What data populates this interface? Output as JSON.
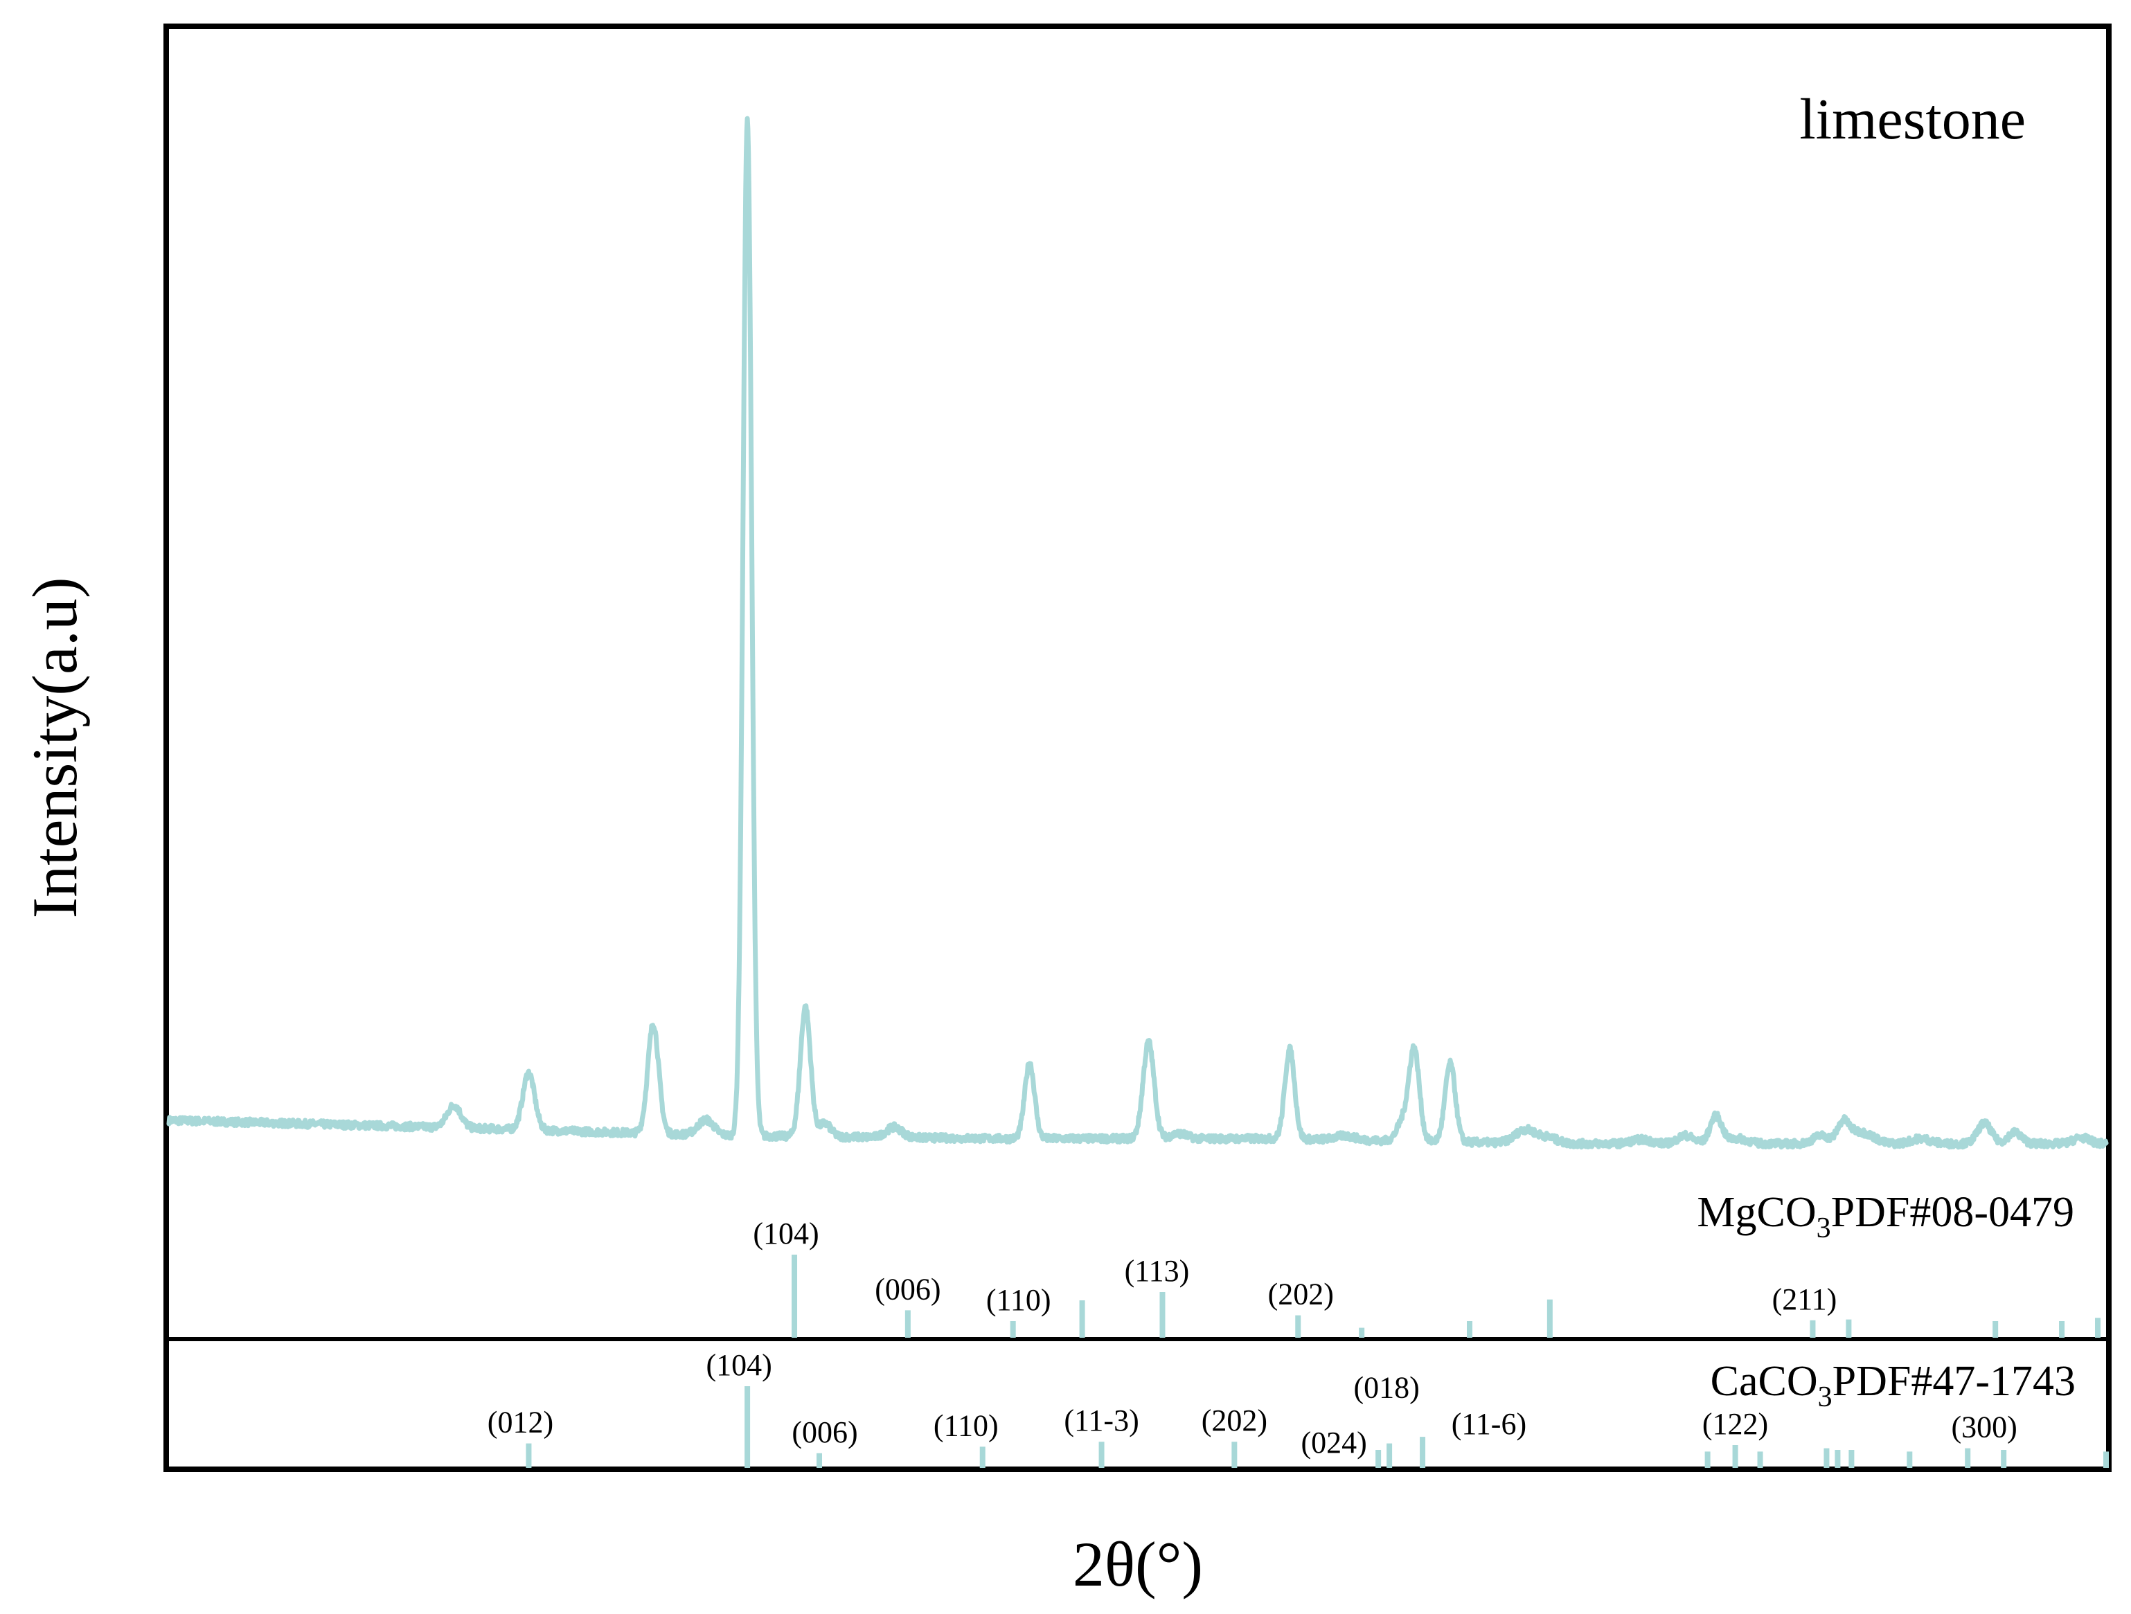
{
  "chart_data": {
    "type": "line",
    "title": "",
    "xlabel": "2θ(°)",
    "ylabel": "Intensity(a.u)",
    "xlim": [
      10,
      80
    ],
    "ylim": [
      0,
      100
    ],
    "grid": false,
    "legend": "none",
    "colors": {
      "pattern": "#a8d8d8",
      "axes": "#000000"
    },
    "series": [
      {
        "name": "limestone",
        "peaks": [
          {
            "x": 20.3,
            "y": 2.2,
            "w": 0.35
          },
          {
            "x": 23.0,
            "y": 5.6,
            "w": 0.3
          },
          {
            "x": 27.5,
            "y": 10.8,
            "w": 0.28
          },
          {
            "x": 29.4,
            "y": 1.5,
            "w": 0.4
          },
          {
            "x": 30.9,
            "y": 99.8,
            "w": 0.22
          },
          {
            "x": 33.0,
            "y": 12.7,
            "w": 0.26
          },
          {
            "x": 33.7,
            "y": 1.3,
            "w": 0.3
          },
          {
            "x": 36.2,
            "y": 1.0,
            "w": 0.4
          },
          {
            "x": 41.1,
            "y": 7.4,
            "w": 0.25
          },
          {
            "x": 45.4,
            "y": 9.5,
            "w": 0.28
          },
          {
            "x": 46.5,
            "y": 0.5,
            "w": 0.4
          },
          {
            "x": 50.5,
            "y": 8.8,
            "w": 0.25
          },
          {
            "x": 52.5,
            "y": 0.4,
            "w": 0.5
          },
          {
            "x": 54.6,
            "y": 2.0,
            "w": 0.3
          },
          {
            "x": 55.0,
            "y": 8.9,
            "w": 0.26
          },
          {
            "x": 56.3,
            "y": 7.7,
            "w": 0.26
          },
          {
            "x": 59.0,
            "y": 1.3,
            "w": 0.5
          },
          {
            "x": 59.8,
            "y": 0.6,
            "w": 0.5
          },
          {
            "x": 63.2,
            "y": 0.4,
            "w": 0.5
          },
          {
            "x": 64.8,
            "y": 0.8,
            "w": 0.4
          },
          {
            "x": 65.9,
            "y": 2.7,
            "w": 0.3
          },
          {
            "x": 66.7,
            "y": 0.5,
            "w": 0.5
          },
          {
            "x": 69.7,
            "y": 0.8,
            "w": 0.4
          },
          {
            "x": 70.5,
            "y": 2.1,
            "w": 0.3
          },
          {
            "x": 71.0,
            "y": 1.0,
            "w": 0.4
          },
          {
            "x": 71.5,
            "y": 0.6,
            "w": 0.4
          },
          {
            "x": 73.3,
            "y": 0.5,
            "w": 0.5
          },
          {
            "x": 75.6,
            "y": 2.0,
            "w": 0.35
          },
          {
            "x": 76.7,
            "y": 1.1,
            "w": 0.35
          },
          {
            "x": 79.1,
            "y": 0.6,
            "w": 0.4
          }
        ],
        "baseline": [
          {
            "x": 10,
            "y": 1.5
          },
          {
            "x": 20,
            "y": 0.8
          },
          {
            "x": 30,
            "y": 0.0
          },
          {
            "x": 40,
            "y": -0.3
          },
          {
            "x": 50,
            "y": -0.3
          },
          {
            "x": 60,
            "y": -0.8
          },
          {
            "x": 70,
            "y": -0.8
          },
          {
            "x": 80,
            "y": -0.8
          }
        ]
      }
    ],
    "references": [
      {
        "name_main": "MgCO",
        "name_sub": "3",
        "name_rest": "PDF#08-0479",
        "sticks": [
          {
            "x": 32.6,
            "h": 100,
            "hkl": "(104)",
            "label_dx": -0.3,
            "label_dy": 0
          },
          {
            "x": 36.7,
            "h": 33,
            "hkl": "(006)",
            "label_dx": 0,
            "label_dy": 0
          },
          {
            "x": 40.5,
            "h": 20,
            "hkl": "(110)",
            "label_dx": 0.2,
            "label_dy": 0
          },
          {
            "x": 43.0,
            "h": 45,
            "hkl": "",
            "label_dx": 0,
            "label_dy": 0
          },
          {
            "x": 45.9,
            "h": 55,
            "hkl": "(113)",
            "label_dx": -0.2,
            "label_dy": 0
          },
          {
            "x": 50.8,
            "h": 27,
            "hkl": "(202)",
            "label_dx": 0.1,
            "label_dy": 0
          },
          {
            "x": 53.1,
            "h": 12,
            "hkl": "",
            "label_dx": 0,
            "label_dy": 0
          },
          {
            "x": 57.0,
            "h": 20,
            "hkl": "",
            "label_dx": 0,
            "label_dy": 0
          },
          {
            "x": 59.9,
            "h": 46,
            "hkl": "",
            "label_dx": 0,
            "label_dy": 0
          },
          {
            "x": 69.4,
            "h": 21,
            "hkl": "(211)",
            "label_dx": -0.3,
            "label_dy": 0
          },
          {
            "x": 70.7,
            "h": 22,
            "hkl": "",
            "label_dx": 0,
            "label_dy": 0
          },
          {
            "x": 76.0,
            "h": 20,
            "hkl": "",
            "label_dx": 0,
            "label_dy": 0
          },
          {
            "x": 78.4,
            "h": 20,
            "hkl": "",
            "label_dx": 0,
            "label_dy": 0
          },
          {
            "x": 79.7,
            "h": 24,
            "hkl": "",
            "label_dx": 0,
            "label_dy": 0
          }
        ]
      },
      {
        "name_main": "CaCO",
        "name_sub": "3",
        "name_rest": "PDF#47-1743",
        "sticks": [
          {
            "x": 23.0,
            "h": 30,
            "hkl": "(012)",
            "label_dx": -0.3,
            "label_dy": 0
          },
          {
            "x": 30.9,
            "h": 100,
            "hkl": "(104)",
            "label_dx": -0.3,
            "label_dy": 0
          },
          {
            "x": 33.5,
            "h": 18,
            "hkl": "(006)",
            "label_dx": 0.2,
            "label_dy": 0
          },
          {
            "x": 39.4,
            "h": 26,
            "hkl": "(110)",
            "label_dx": -0.6,
            "label_dy": 0
          },
          {
            "x": 43.7,
            "h": 32,
            "hkl": "(11-3)",
            "label_dx": 0,
            "label_dy": 0
          },
          {
            "x": 48.5,
            "h": 32,
            "hkl": "(202)",
            "label_dx": 0,
            "label_dy": 0
          },
          {
            "x": 53.7,
            "h": 22,
            "hkl": "(024)",
            "label_dx": -1.6,
            "label_dy": 20
          },
          {
            "x": 54.1,
            "h": 30,
            "hkl": "(018)",
            "label_dx": -0.1,
            "label_dy": -50
          },
          {
            "x": 55.3,
            "h": 38,
            "hkl": "(11-6)",
            "label_dx": 2.4,
            "label_dy": 12
          },
          {
            "x": 65.6,
            "h": 20,
            "hkl": "",
            "label_dx": 0,
            "label_dy": 0
          },
          {
            "x": 66.6,
            "h": 28,
            "hkl": "(122)",
            "label_dx": 0,
            "label_dy": 0
          },
          {
            "x": 67.5,
            "h": 20,
            "hkl": "",
            "label_dx": 0,
            "label_dy": 0
          },
          {
            "x": 69.9,
            "h": 24,
            "hkl": "",
            "label_dx": 0,
            "label_dy": 0
          },
          {
            "x": 70.3,
            "h": 22,
            "hkl": "",
            "label_dx": 0,
            "label_dy": 0
          },
          {
            "x": 70.8,
            "h": 22,
            "hkl": "",
            "label_dx": 0,
            "label_dy": 0
          },
          {
            "x": 72.9,
            "h": 20,
            "hkl": "",
            "label_dx": 0,
            "label_dy": 0
          },
          {
            "x": 75.0,
            "h": 24,
            "hkl": "(300)",
            "label_dx": 0.6,
            "label_dy": 0
          },
          {
            "x": 76.3,
            "h": 22,
            "hkl": "",
            "label_dx": 0,
            "label_dy": 0
          },
          {
            "x": 80.0,
            "h": 20,
            "hkl": "",
            "label_dx": 0,
            "label_dy": 0
          }
        ]
      }
    ]
  }
}
